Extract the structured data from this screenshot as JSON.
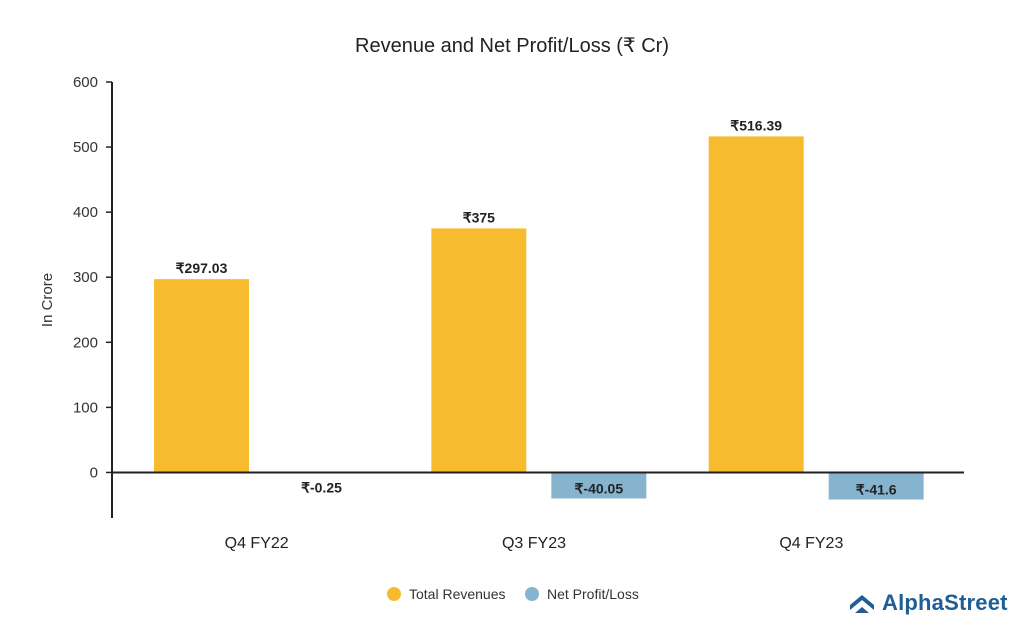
{
  "colors": {
    "revenue": "#f6bb2e",
    "profit": "#86b4cf",
    "axis": "#222222",
    "brand": "#1f5d94"
  },
  "brand": {
    "name": "AlphaStreet",
    "icon": "alphastreet-logo-icon"
  },
  "chart_data": {
    "type": "bar",
    "title": "Revenue and Net Profit/Loss (₹ Cr)",
    "xlabel": "",
    "ylabel": "In Crore",
    "ylim": [
      -70,
      600
    ],
    "yticks": [
      0,
      100,
      200,
      300,
      400,
      500,
      600
    ],
    "grid": false,
    "legend_position": "bottom",
    "categories": [
      "Q4 FY22",
      "Q3 FY23",
      "Q4 FY23"
    ],
    "series": [
      {
        "name": "Total Revenues",
        "values": [
          297.03,
          375,
          516.39
        ],
        "labels": [
          "₹297.03",
          "₹375",
          "₹516.39"
        ]
      },
      {
        "name": "Net Profit/Loss",
        "values": [
          -0.25,
          -40.05,
          -41.6
        ],
        "labels": [
          "₹-0.25",
          "₹-40.05",
          "₹-41.6"
        ]
      }
    ]
  }
}
